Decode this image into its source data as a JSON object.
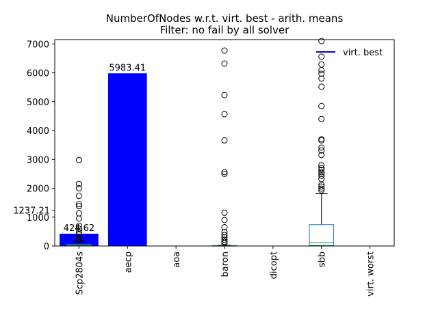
{
  "chart_data": {
    "type": "bar",
    "title": "NumberOfNodes w.r.t. virt. best - arith. means",
    "subtitle": "Filter: no fail by all solver",
    "xlabel": "",
    "ylabel": "",
    "ylim": [
      0,
      7150
    ],
    "yticks": [
      0,
      1000,
      2000,
      3000,
      4000,
      5000,
      6000,
      7000
    ],
    "extra_ytick": {
      "value": 1237.21,
      "label": "1237.21"
    },
    "grid": false,
    "categories": [
      "Scp2804s",
      "aecp",
      "aoa",
      "baron",
      "dicopt",
      "sbb",
      "virt. worst"
    ],
    "bars": {
      "color": "#0000ff",
      "values": [
        424.62,
        5983.41,
        0,
        0,
        0,
        0,
        0
      ],
      "labels": [
        "424.62",
        "5983.41",
        "",
        "",
        "",
        "",
        ""
      ]
    },
    "legend": {
      "position": "top-right",
      "entries": [
        {
          "name": "virt. best",
          "color": "#0000cc",
          "kind": "line"
        }
      ]
    },
    "boxplots": [
      {
        "category": "Scp2804s",
        "q1": 5,
        "median": 20,
        "q3": 60,
        "whisker_low": 0,
        "whisker_high": 150,
        "outliers": [
          2980,
          2150,
          2000,
          1740,
          1450,
          1380,
          1130,
          950,
          700,
          600,
          480,
          400,
          320,
          260,
          200
        ]
      },
      {
        "category": "baron",
        "q1": 0,
        "median": 5,
        "q3": 15,
        "whisker_low": 0,
        "whisker_high": 30,
        "outliers": [
          6770,
          6320,
          5230,
          4570,
          3660,
          2560,
          2500,
          1150,
          900,
          650,
          480,
          380,
          300,
          220,
          150,
          100
        ]
      },
      {
        "category": "sbb",
        "q1": 20,
        "median": 120,
        "q3": 740,
        "whisker_low": 0,
        "whisker_high": 1810,
        "outliers": [
          7100,
          6560,
          6290,
          6090,
          5970,
          5800,
          5520,
          4850,
          4400,
          3700,
          3660,
          3410,
          3310,
          3150,
          2800,
          2700,
          2640,
          2560,
          2500,
          2430,
          2320,
          2120,
          2060,
          1990,
          1930
        ]
      }
    ],
    "box_style": {
      "box_color": "#1f77b4",
      "median_color": "#2ca02c",
      "whisker_color": "#000000"
    }
  }
}
